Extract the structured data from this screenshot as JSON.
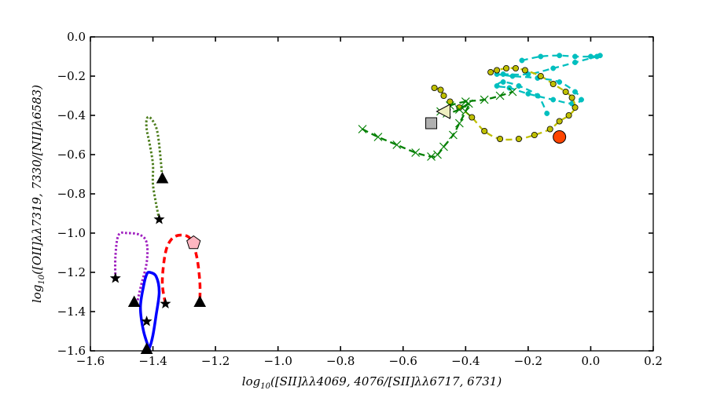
{
  "chart_data": {
    "type": "line",
    "title": "",
    "xlabel": "log10([SII]λλ4069,4076/[SII]λλ6717,6731)",
    "ylabel": "log10([OII]λλ7319,7330/[NII]λ6583)",
    "xlabel_parts": [
      "log",
      "10",
      "([SII]λλ4069, 4076/[SII]λλ6717, 6731)"
    ],
    "ylabel_parts": [
      "log",
      "10",
      "([OII]λλ7319, 7330/[NII]λ6583)"
    ],
    "xlim": [
      -1.6,
      0.2
    ],
    "ylim": [
      -1.6,
      0.0
    ],
    "grid": false,
    "x_ticks": [
      -1.6,
      -1.4,
      -1.2,
      -1.0,
      -0.8,
      -0.6,
      -0.4,
      -0.2,
      0.0,
      0.2
    ],
    "x_tick_labels": [
      "−1.6",
      "−1.4",
      "−1.2",
      "−1.0",
      "−0.8",
      "−0.6",
      "−0.4",
      "−0.2",
      "0.0",
      "0.2"
    ],
    "y_ticks": [
      0.0,
      -0.2,
      -0.4,
      -0.6,
      -0.8,
      -1.0,
      -1.2,
      -1.4,
      -1.6
    ],
    "y_tick_labels": [
      "0.0",
      "−0.2",
      "−0.4",
      "−0.6",
      "−0.8",
      "−1.0",
      "−1.2",
      "−1.4",
      "−1.6"
    ],
    "series": [
      {
        "style": "dashed",
        "color": "#00bfbf",
        "marker": "dot",
        "x": [
          -0.22,
          -0.16,
          -0.1,
          -0.05,
          0.0,
          0.03,
          0.02,
          -0.05,
          -0.12,
          -0.2,
          -0.28,
          -0.3,
          -0.25,
          -0.17,
          -0.1,
          -0.05,
          -0.03,
          -0.06,
          -0.12,
          -0.2,
          -0.26,
          -0.3,
          -0.28,
          -0.23,
          -0.17,
          -0.14
        ],
        "y": [
          -0.12,
          -0.1,
          -0.095,
          -0.1,
          -0.1,
          -0.095,
          -0.1,
          -0.13,
          -0.16,
          -0.19,
          -0.19,
          -0.19,
          -0.2,
          -0.21,
          -0.23,
          -0.28,
          -0.32,
          -0.34,
          -0.32,
          -0.29,
          -0.26,
          -0.25,
          -0.23,
          -0.25,
          -0.3,
          -0.39
        ]
      },
      {
        "style": "dashed",
        "color": "#bfbf00",
        "marker": "circle",
        "x": [
          -0.32,
          -0.3,
          -0.27,
          -0.24,
          -0.21,
          -0.16,
          -0.12,
          -0.08,
          -0.06,
          -0.05,
          -0.07,
          -0.1,
          -0.13,
          -0.18,
          -0.23,
          -0.29,
          -0.34,
          -0.38,
          -0.42,
          -0.45,
          -0.47,
          -0.48,
          -0.5
        ],
        "y": [
          -0.18,
          -0.17,
          -0.16,
          -0.16,
          -0.17,
          -0.2,
          -0.24,
          -0.28,
          -0.31,
          -0.36,
          -0.4,
          -0.43,
          -0.47,
          -0.5,
          -0.52,
          -0.52,
          -0.48,
          -0.41,
          -0.36,
          -0.33,
          -0.3,
          -0.27,
          -0.26
        ]
      },
      {
        "style": "dashed",
        "color": "#007f00",
        "marker": "x",
        "x": [
          -0.73,
          -0.68,
          -0.62,
          -0.56,
          -0.51,
          -0.49,
          -0.47,
          -0.44,
          -0.42,
          -0.4,
          -0.39,
          -0.42,
          -0.46,
          -0.48,
          -0.45,
          -0.4,
          -0.34,
          -0.29,
          -0.25
        ],
        "y": [
          -0.47,
          -0.51,
          -0.55,
          -0.59,
          -0.61,
          -0.6,
          -0.56,
          -0.5,
          -0.44,
          -0.38,
          -0.34,
          -0.37,
          -0.39,
          -0.38,
          -0.35,
          -0.33,
          -0.32,
          -0.3,
          -0.28
        ]
      },
      {
        "style": "dotted",
        "color": "#4f7f1f",
        "marker": "none",
        "x": [
          -1.38,
          -1.39,
          -1.4,
          -1.4,
          -1.41,
          -1.42,
          -1.42,
          -1.41,
          -1.39,
          -1.38,
          -1.37
        ],
        "y": [
          -0.93,
          -0.85,
          -0.75,
          -0.65,
          -0.55,
          -0.47,
          -0.42,
          -0.41,
          -0.46,
          -0.55,
          -0.72
        ]
      },
      {
        "style": "dotted",
        "color": "#9f1fbf",
        "marker": "none",
        "x": [
          -1.52,
          -1.52,
          -1.51,
          -1.48,
          -1.44,
          -1.42,
          -1.42,
          -1.44,
          -1.45
        ],
        "y": [
          -1.23,
          -1.12,
          -1.01,
          -1.0,
          -1.01,
          -1.05,
          -1.15,
          -1.28,
          -1.35
        ]
      },
      {
        "style": "dashed",
        "color": "#ff0000",
        "marker": "none",
        "x": [
          -1.36,
          -1.37,
          -1.36,
          -1.34,
          -1.31,
          -1.28,
          -1.26,
          -1.25,
          -1.25
        ],
        "y": [
          -1.36,
          -1.25,
          -1.1,
          -1.03,
          -1.01,
          -1.03,
          -1.12,
          -1.25,
          -1.35
        ]
      },
      {
        "style": "solid",
        "color": "#0000ff",
        "marker": "none",
        "x": [
          -1.41,
          -1.43,
          -1.44,
          -1.43,
          -1.42,
          -1.41,
          -1.39,
          -1.38,
          -1.39,
          -1.4,
          -1.41,
          -1.42
        ],
        "y": [
          -1.6,
          -1.5,
          -1.38,
          -1.27,
          -1.21,
          -1.2,
          -1.22,
          -1.3,
          -1.42,
          -1.52,
          -1.58,
          -1.6
        ]
      }
    ],
    "markers": [
      {
        "shape": "circle",
        "color": "#ff4500",
        "x": -0.1,
        "y": -0.51
      },
      {
        "shape": "square",
        "color": "#b0b0b0",
        "x": -0.51,
        "y": -0.44
      },
      {
        "shape": "left-triangle",
        "color": "#eeeec0",
        "x": -0.47,
        "y": -0.38
      },
      {
        "shape": "pentagon",
        "color": "#ffb6c1",
        "x": -1.27,
        "y": -1.05
      },
      {
        "shape": "triangle",
        "color": "#000000",
        "x": -1.37,
        "y": -0.72
      },
      {
        "shape": "triangle",
        "color": "#000000",
        "x": -1.46,
        "y": -1.35
      },
      {
        "shape": "triangle",
        "color": "#000000",
        "x": -1.25,
        "y": -1.35
      },
      {
        "shape": "triangle",
        "color": "#000000",
        "x": -1.42,
        "y": -1.59
      },
      {
        "shape": "star",
        "color": "#000000",
        "x": -1.38,
        "y": -0.93
      },
      {
        "shape": "star",
        "color": "#000000",
        "x": -1.52,
        "y": -1.23
      },
      {
        "shape": "star",
        "color": "#000000",
        "x": -1.36,
        "y": -1.36
      },
      {
        "shape": "star",
        "color": "#000000",
        "x": -1.42,
        "y": -1.45
      }
    ]
  }
}
